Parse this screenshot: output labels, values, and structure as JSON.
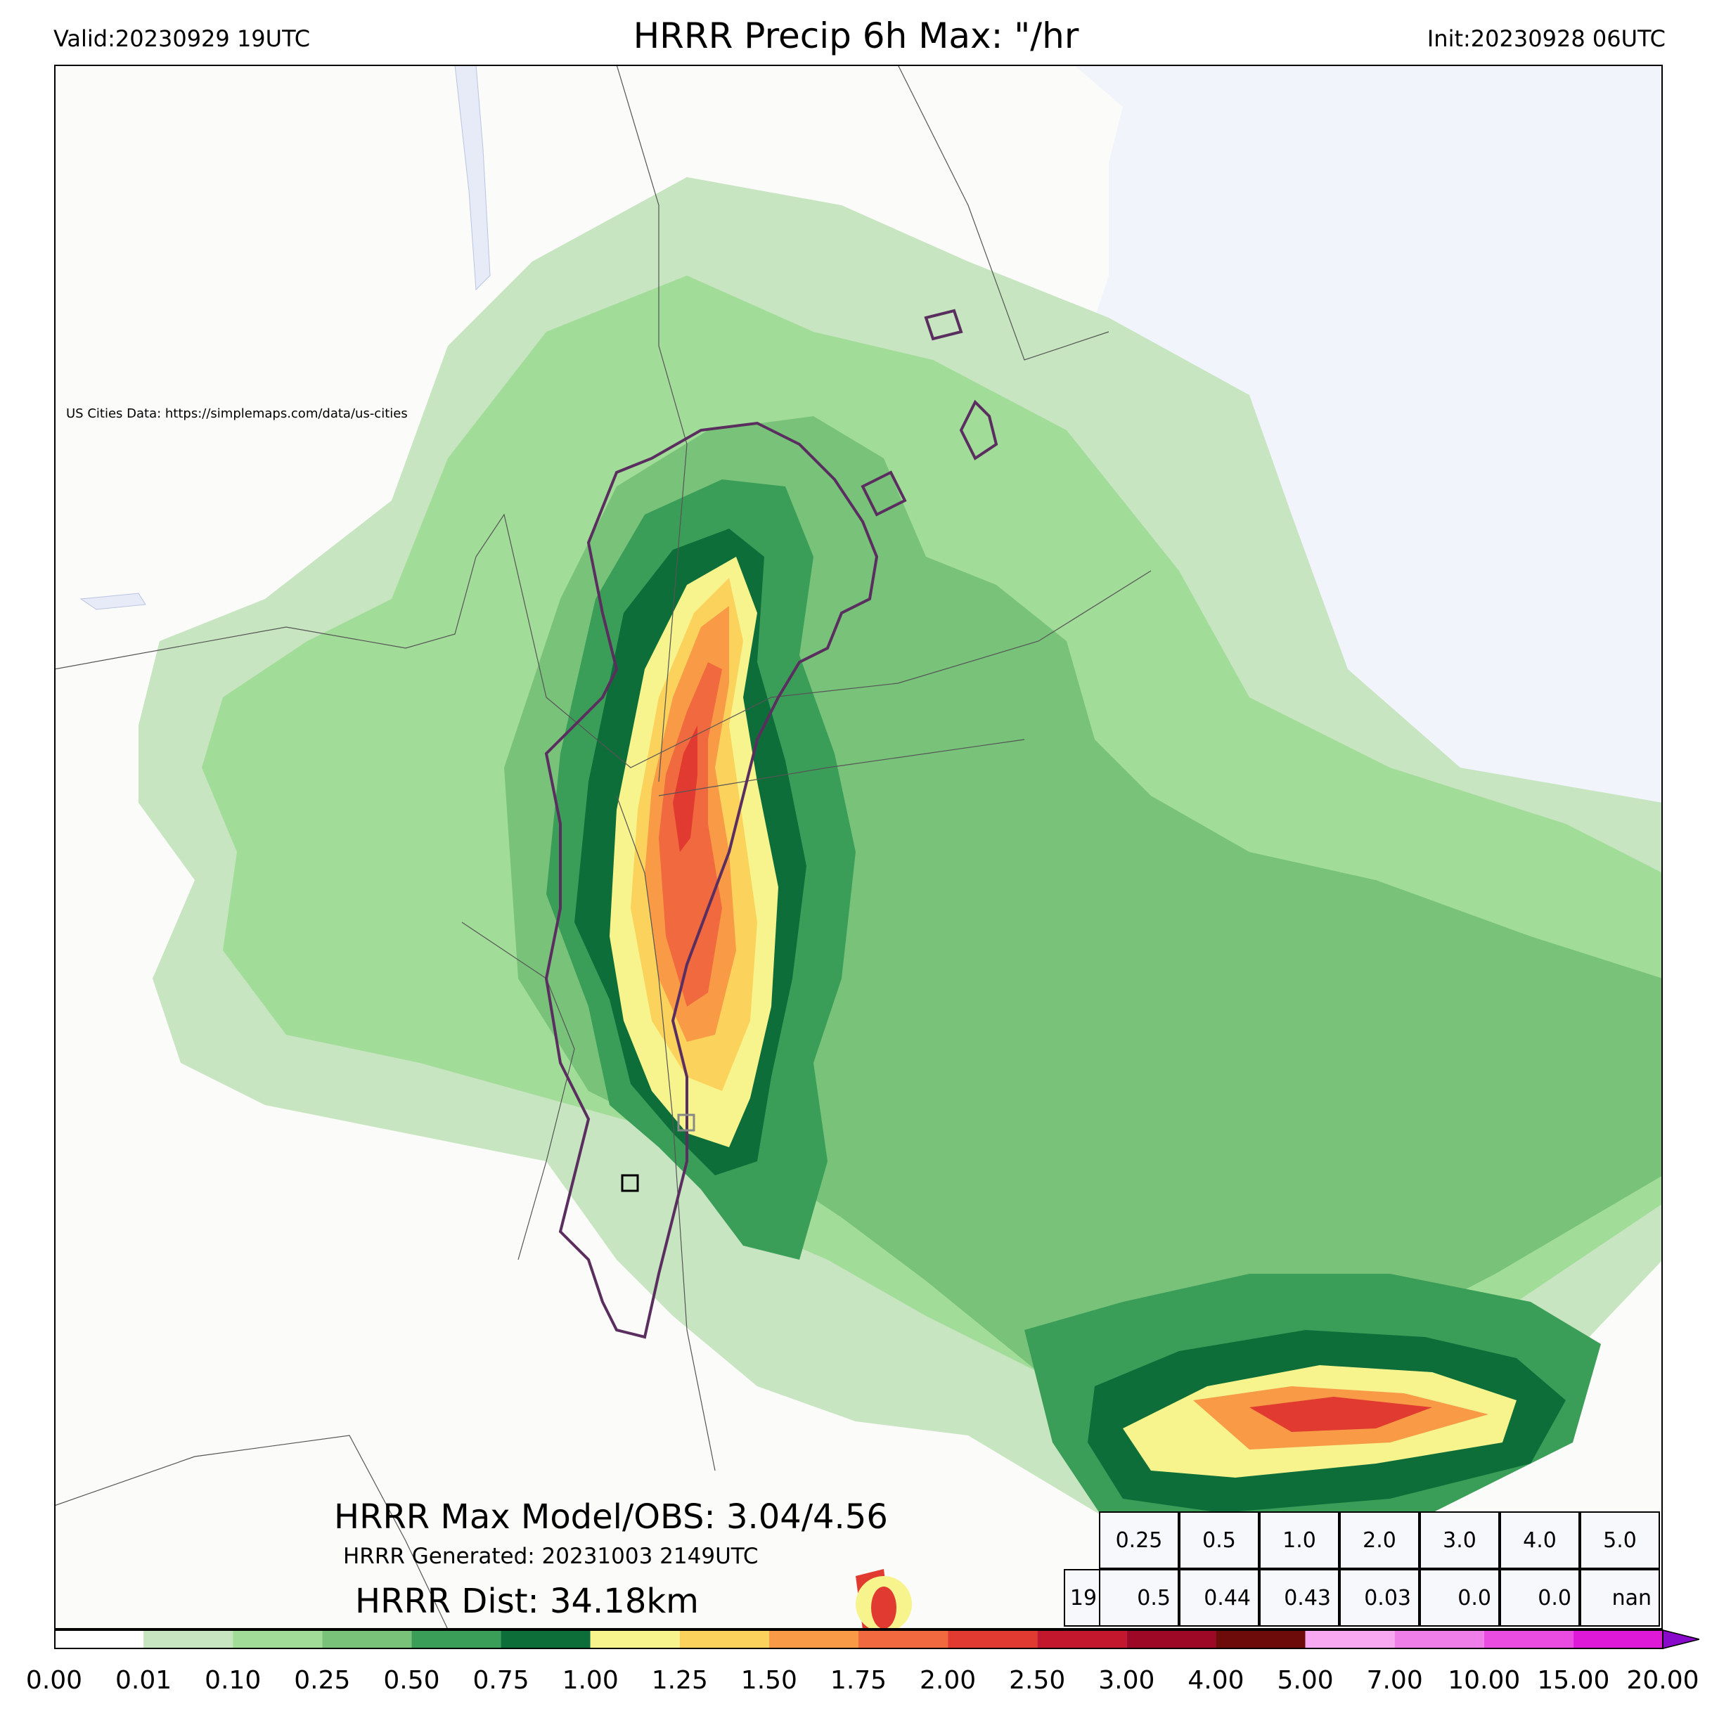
{
  "header": {
    "valid": "Valid:20230929 19UTC",
    "title": "HRRR Precip 6h Max: \"/hr",
    "init": "Init:20230928 06UTC"
  },
  "credit": "US Cities Data: https://simplemaps.com/data/us-cities",
  "stats": {
    "max_model_obs": "HRRR Max Model/OBS: 3.04/4.56",
    "generated": "HRRR Generated: 20231003 2149UTC",
    "distance": "HRRR Dist: 34.18km"
  },
  "threshold_table": {
    "thresholds": [
      "0.25",
      "0.5",
      "1.0",
      "2.0",
      "3.0",
      "4.0",
      "5.0"
    ],
    "row_label": "19",
    "values": [
      "0.5",
      "0.44",
      "0.43",
      "0.03",
      "0.0",
      "0.0",
      "nan"
    ]
  },
  "colorbar": {
    "ticks": [
      "0.00",
      "0.01",
      "0.10",
      "0.25",
      "0.50",
      "0.75",
      "1.00",
      "1.25",
      "1.50",
      "1.75",
      "2.00",
      "2.50",
      "3.00",
      "4.00",
      "5.00",
      "7.00",
      "10.00",
      "15.00",
      "20.00"
    ],
    "colors": [
      "#ffffff",
      "#c7e5c0",
      "#a2dc99",
      "#78c27a",
      "#3b9e58",
      "#0e6e3a",
      "#f7f48d",
      "#fbd25c",
      "#f99a47",
      "#f1693e",
      "#e13a31",
      "#c3172d",
      "#9c0825",
      "#6d0a0a",
      "#f7a8f1",
      "#f07ee9",
      "#ea4be0",
      "#de1ad8",
      "#b414d0",
      "#8a0acc"
    ]
  },
  "colors": {
    "land": "#fbfbf9",
    "water": "#f1f4fa",
    "observed_contour": "#5a2e5e",
    "border_line": "#555555"
  }
}
